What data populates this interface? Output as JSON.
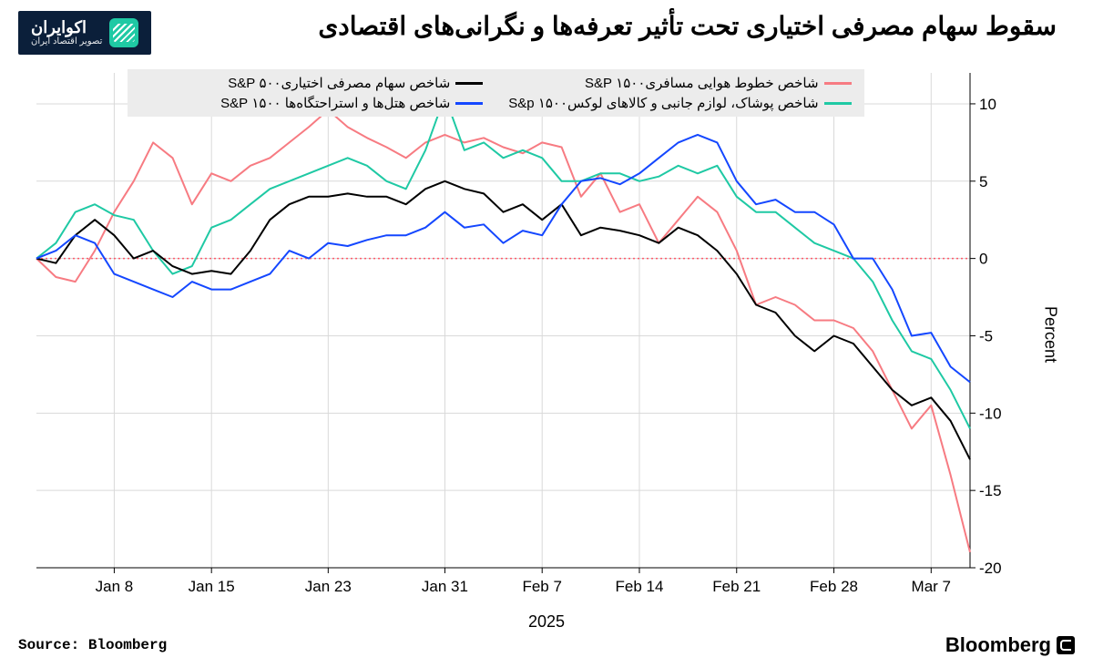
{
  "title": "سقوط سهام مصرفی اختیاری تحت تأثیر تعرفه‌ها و نگرانی‌های اقتصادی",
  "logo": {
    "main": "اکوایران",
    "sub": "تصویر اقتصاد ایران"
  },
  "source": "Source: Bloomberg",
  "attribution": "Bloomberg",
  "y_axis_label": "Percent",
  "x_year": "2025",
  "chart": {
    "type": "line",
    "background_color": "#ffffff",
    "grid_color": "#d9d9d9",
    "zero_line": {
      "color": "#ff5a6a",
      "dash": "2,3"
    },
    "ylim": [
      -20,
      12
    ],
    "yticks": [
      -20,
      -15,
      -10,
      -5,
      0,
      5,
      10
    ],
    "x_count": 49,
    "xticks": [
      {
        "i": 4,
        "label": "Jan 8"
      },
      {
        "i": 9,
        "label": "Jan 15"
      },
      {
        "i": 15,
        "label": "Jan 23"
      },
      {
        "i": 21,
        "label": "Jan 31"
      },
      {
        "i": 26,
        "label": "Feb 7"
      },
      {
        "i": 31,
        "label": "Feb 14"
      },
      {
        "i": 36,
        "label": "Feb 21"
      },
      {
        "i": 41,
        "label": "Feb 28"
      },
      {
        "i": 46,
        "label": "Mar 7"
      }
    ],
    "series": [
      {
        "id": "airlines",
        "label": "شاخص خطوط هوایی مسافری۱۵۰۰ S&P",
        "color": "#f77b82",
        "width": 2,
        "values": [
          0,
          -1.2,
          -1.5,
          0.5,
          3.0,
          5.0,
          7.5,
          6.5,
          3.5,
          5.5,
          5.0,
          6.0,
          6.5,
          7.5,
          8.5,
          9.6,
          8.5,
          7.8,
          7.2,
          6.5,
          7.5,
          8.0,
          7.5,
          7.8,
          7.2,
          6.8,
          7.5,
          7.2,
          4.0,
          5.5,
          3.0,
          3.5,
          1.0,
          2.5,
          4.0,
          3.0,
          0.5,
          -3.0,
          -2.5,
          -3.0,
          -4.0,
          -4.0,
          -4.5,
          -6.0,
          -8.5,
          -11.0,
          -9.5,
          -14.0,
          -19.0
        ]
      },
      {
        "id": "apparel",
        "label": "شاخص پوشاک، لوازم جانبی و کالاهای لوکس۱۵۰۰ S&p",
        "color": "#1fc9a4",
        "width": 2,
        "values": [
          0,
          1.0,
          3.0,
          3.5,
          2.8,
          2.5,
          0.5,
          -1.0,
          -0.5,
          2.0,
          2.5,
          3.5,
          4.5,
          5.0,
          5.5,
          6.0,
          6.5,
          6.0,
          5.0,
          4.5,
          7.0,
          10.5,
          7.0,
          7.5,
          6.5,
          7.0,
          6.5,
          5.0,
          5.0,
          5.5,
          5.5,
          5.0,
          5.3,
          6.0,
          5.5,
          6.0,
          4.0,
          3.0,
          3.0,
          2.0,
          1.0,
          0.5,
          0.0,
          -1.5,
          -4.0,
          -6.0,
          -6.5,
          -8.5,
          -11.0
        ]
      },
      {
        "id": "discretionary",
        "label": "شاخص سهام مصرفی اختیاری۵۰۰ S&P",
        "color": "#000000",
        "width": 2,
        "values": [
          0,
          -0.3,
          1.5,
          2.5,
          1.5,
          0.0,
          0.5,
          -0.5,
          -1.0,
          -0.8,
          -1.0,
          0.5,
          2.5,
          3.5,
          4.0,
          4.0,
          4.2,
          4.0,
          4.0,
          3.5,
          4.5,
          5.0,
          4.5,
          4.2,
          3.0,
          3.5,
          2.5,
          3.5,
          1.5,
          2.0,
          1.8,
          1.5,
          1.0,
          2.0,
          1.5,
          0.5,
          -1.0,
          -3.0,
          -3.5,
          -5.0,
          -6.0,
          -5.0,
          -5.5,
          -7.0,
          -8.5,
          -9.5,
          -9.0,
          -10.5,
          -13.0
        ]
      },
      {
        "id": "hotels",
        "label": "شاخص هتل‌ها و استراحتگاه‌ها ۱۵۰۰ S&P",
        "color": "#1447ff",
        "width": 2,
        "values": [
          0,
          0.5,
          1.5,
          1.0,
          -1.0,
          -1.5,
          -2.0,
          -2.5,
          -1.5,
          -2.0,
          -2.0,
          -1.5,
          -1.0,
          0.5,
          0.0,
          1.0,
          0.8,
          1.2,
          1.5,
          1.5,
          2.0,
          3.0,
          2.0,
          2.2,
          1.0,
          1.8,
          1.5,
          3.5,
          5.0,
          5.2,
          4.8,
          5.5,
          6.5,
          7.5,
          8.0,
          7.5,
          5.0,
          3.5,
          3.8,
          3.0,
          3.0,
          2.2,
          0.0,
          0.0,
          -2.0,
          -5.0,
          -4.8,
          -7.0,
          -8.0
        ]
      }
    ]
  },
  "legend_order": [
    "discretionary",
    "airlines",
    "hotels",
    "apparel"
  ]
}
